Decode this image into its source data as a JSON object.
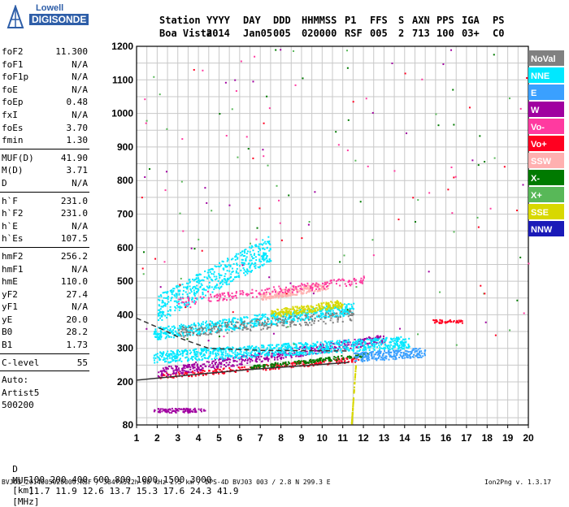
{
  "logo": {
    "line1": "Lowell",
    "line2": "DIGISONDE"
  },
  "header": {
    "labels": [
      "Station",
      "YYYY",
      "DAY",
      "DDD",
      "HHMMSS",
      "P1",
      "FFS",
      "S",
      "AXN",
      "PPS",
      "IGA",
      "PS"
    ],
    "values": [
      "Boa Vista",
      "2014",
      "Jan05",
      "005",
      "020000",
      "RSF",
      "005",
      "2",
      "713",
      "100",
      "03+",
      "C0"
    ]
  },
  "params": [
    {
      "name": "foF2",
      "value": "11.300"
    },
    {
      "name": "foF1",
      "value": "N/A"
    },
    {
      "name": "foF1p",
      "value": "N/A"
    },
    {
      "name": "foE",
      "value": "N/A"
    },
    {
      "name": "foEp",
      "value": "0.48"
    },
    {
      "name": "fxI",
      "value": "N/A"
    },
    {
      "name": "foEs",
      "value": "3.70"
    },
    {
      "name": "fmin",
      "value": "1.30"
    },
    {
      "sep": true
    },
    {
      "name": "MUF(D)",
      "value": "41.90"
    },
    {
      "name": "M(D)",
      "value": "3.71"
    },
    {
      "name": "D",
      "value": "N/A"
    },
    {
      "sep": true
    },
    {
      "name": "h`F",
      "value": "231.0"
    },
    {
      "name": "h`F2",
      "value": "231.0"
    },
    {
      "name": "h`E",
      "value": "N/A"
    },
    {
      "name": "h`Es",
      "value": "107.5"
    },
    {
      "sep": true
    },
    {
      "name": "hmF2",
      "value": "256.2"
    },
    {
      "name": "hmF1",
      "value": "N/A"
    },
    {
      "name": "hmE",
      "value": "110.0"
    },
    {
      "name": "yF2",
      "value": "27.4"
    },
    {
      "name": "yF1",
      "value": "N/A"
    },
    {
      "name": "yE",
      "value": "20.0"
    },
    {
      "name": "B0",
      "value": "28.2"
    },
    {
      "name": "B1",
      "value": "1.73"
    },
    {
      "sep": true
    },
    {
      "name": "C-level",
      "value": "55"
    },
    {
      "sep": true
    },
    {
      "name": "Auto:",
      "value": ""
    },
    {
      "name": "Artist5",
      "value": ""
    },
    {
      "name": "500200",
      "value": ""
    }
  ],
  "footer": {
    "d_label": "D",
    "d_values": [
      "100",
      "200",
      "400",
      "600",
      "800",
      "1000",
      "1500",
      "3000"
    ],
    "d_unit": "[km]",
    "muf_label": "MUF",
    "muf_values": [
      "11.7",
      "11.9",
      "12.6",
      "13.7",
      "15.3",
      "17.6",
      "24.3",
      "41.9"
    ],
    "muf_unit": "[MHz]",
    "file_line": "BVJ03_2014005020000.RSF / 384fx512h 50 kHz 2.5 km / DPS-4D BVJ03 003 / 2.8 N 299.3 E",
    "version": "Ion2Png v. 1.3.17"
  },
  "legend": [
    {
      "label": "NoVal",
      "color": "#808080"
    },
    {
      "label": "NNE",
      "color": "#00e8ff"
    },
    {
      "label": "E",
      "color": "#3aa0ff"
    },
    {
      "label": "W",
      "color": "#a000a0"
    },
    {
      "label": "Vo-",
      "color": "#ff3aa0"
    },
    {
      "label": "Vo+",
      "color": "#ff0020"
    },
    {
      "label": "SSW",
      "color": "#ffb0b0"
    },
    {
      "label": "X-",
      "color": "#007a00"
    },
    {
      "label": "X+",
      "color": "#58b858"
    },
    {
      "label": "SSE",
      "color": "#d8d800"
    },
    {
      "label": "NNW",
      "color": "#1a1ab8"
    }
  ],
  "chart_data": {
    "type": "scatter",
    "xlim": [
      1,
      20
    ],
    "ylim": [
      80,
      1200
    ],
    "xticks": [
      1,
      2,
      3,
      4,
      5,
      6,
      7,
      8,
      9,
      10,
      11,
      12,
      13,
      14,
      15,
      16,
      17,
      18,
      19,
      20
    ],
    "yticks": [
      80,
      100,
      200,
      300,
      400,
      500,
      600,
      700,
      800,
      900,
      1000,
      1100,
      1200
    ],
    "grid": true,
    "legend_position": "right",
    "traces": [
      {
        "name": "es-trace",
        "color": "#a000a0",
        "x0": 1.8,
        "x1": 4.3,
        "y": 122,
        "spread": 6,
        "n": 90
      },
      {
        "name": "o-trace-lower",
        "color": "#ff0020",
        "x0": 2.0,
        "x1": 11.8,
        "y0": 218,
        "y1": 270,
        "spread": 8,
        "n": 260
      },
      {
        "name": "x-trace-lower",
        "color": "#007a00",
        "x0": 6.5,
        "x1": 12.2,
        "y0": 245,
        "y1": 283,
        "spread": 6,
        "n": 170
      },
      {
        "name": "w-band",
        "color": "#a000a0",
        "x0": 2.0,
        "x1": 13.0,
        "y0": 230,
        "y1": 330,
        "spread": 14,
        "n": 500
      },
      {
        "name": "nne-cloud-low",
        "color": "#00e8ff",
        "x0": 1.8,
        "x1": 14.2,
        "y0": 275,
        "y1": 320,
        "spread": 18,
        "n": 850
      },
      {
        "name": "nne-cloud-mid",
        "color": "#00e8ff",
        "x0": 1.8,
        "x1": 11.5,
        "y0": 345,
        "y1": 420,
        "spread": 18,
        "n": 650
      },
      {
        "name": "nne-scatter-high",
        "color": "#00e8ff",
        "x0": 2.0,
        "x1": 7.5,
        "y0": 420,
        "y1": 600,
        "spread": 40,
        "n": 500
      },
      {
        "name": "e-tail",
        "color": "#3aa0ff",
        "x0": 11.5,
        "x1": 15.0,
        "y0": 275,
        "y1": 290,
        "spread": 14,
        "n": 230
      },
      {
        "name": "ssw-cloud",
        "color": "#ffb0b0",
        "x0": 7.0,
        "x1": 10.3,
        "y0": 455,
        "y1": 490,
        "spread": 12,
        "n": 230
      },
      {
        "name": "sse-cloud",
        "color": "#d8d800",
        "x0": 7.5,
        "x1": 11.0,
        "y0": 405,
        "y1": 435,
        "spread": 12,
        "n": 220
      },
      {
        "name": "vo-upper",
        "color": "#ff3aa0",
        "x0": 3.0,
        "x1": 12.0,
        "y0": 440,
        "y1": 505,
        "spread": 12,
        "n": 200
      },
      {
        "name": "noval-band",
        "color": "#808080",
        "x0": 3.0,
        "x1": 11.5,
        "y0": 350,
        "y1": 400,
        "spread": 16,
        "n": 250
      },
      {
        "name": "f2-cluster",
        "color": "#ff0020",
        "x0": 15.3,
        "x1": 16.8,
        "y0": 382,
        "y1": 382,
        "spread": 5,
        "n": 45
      },
      {
        "name": "sse-vertical",
        "color": "#d8d800",
        "x0": 11.4,
        "x1": 11.6,
        "y0": 85,
        "y1": 250,
        "spread": 2,
        "n": 80
      }
    ],
    "curves": [
      {
        "name": "virtual-height-profile",
        "color": "#333333",
        "points": [
          [
            1,
            205
          ],
          [
            3.5,
            220
          ],
          [
            6.5,
            237
          ],
          [
            9.5,
            250
          ],
          [
            11.3,
            258
          ]
        ]
      },
      {
        "name": "true-height-profile",
        "color": "#333333",
        "dashed": true,
        "points": [
          [
            1,
            390
          ],
          [
            2.3,
            355
          ],
          [
            3.2,
            328
          ],
          [
            4.5,
            300
          ],
          [
            7,
            294
          ],
          [
            11.3,
            292
          ]
        ]
      }
    ]
  }
}
